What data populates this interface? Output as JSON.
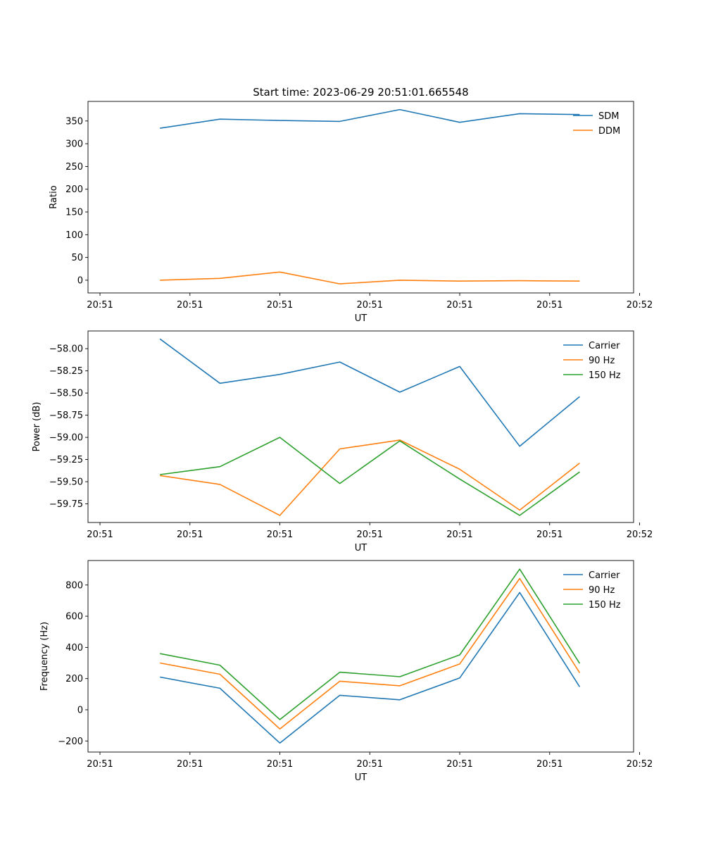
{
  "figure_title": "Start time: 2023-06-29 20:51:01.665548",
  "chart_data": [
    {
      "type": "line",
      "title": "Start time: 2023-06-29 20:51:01.665548",
      "xlabel": "UT",
      "ylabel": "Ratio",
      "x_tick_labels": [
        "20:51",
        "20:51",
        "20:51",
        "20:51",
        "20:51",
        "20:51",
        "20:52"
      ],
      "x": [
        1,
        2,
        3,
        4,
        5,
        6,
        7,
        8
      ],
      "xlim": [
        -0.2,
        8.9
      ],
      "y_ticks": [
        0,
        50,
        100,
        150,
        200,
        250,
        300,
        350
      ],
      "ylim": [
        -28,
        393
      ],
      "legend_position": "upper right",
      "series": [
        {
          "name": "SDM",
          "color": "#1f77b4",
          "values": [
            334,
            354,
            351,
            349,
            375,
            347,
            366,
            364
          ]
        },
        {
          "name": "DDM",
          "color": "#ff7f0e",
          "values": [
            0,
            4,
            18,
            -8,
            0,
            -2,
            -1,
            -2
          ]
        }
      ]
    },
    {
      "type": "line",
      "xlabel": "UT",
      "ylabel": "Power (dB)",
      "x_tick_labels": [
        "20:51",
        "20:51",
        "20:51",
        "20:51",
        "20:51",
        "20:51",
        "20:52"
      ],
      "x": [
        1,
        2,
        3,
        4,
        5,
        6,
        7,
        8
      ],
      "xlim": [
        -0.2,
        8.9
      ],
      "y_ticks": [
        -58.0,
        -58.25,
        -58.5,
        -58.75,
        -59.0,
        -59.25,
        -59.5,
        -59.75
      ],
      "y_tick_labels": [
        "−58.00",
        "−58.25",
        "−58.50",
        "−58.75",
        "−59.00",
        "−59.25",
        "−59.50",
        "−59.75"
      ],
      "ylim": [
        -59.96,
        -57.8
      ],
      "legend_position": "upper right",
      "series": [
        {
          "name": "Carrier",
          "color": "#1f77b4",
          "values": [
            -57.89,
            -58.39,
            -58.29,
            -58.15,
            -58.49,
            -58.2,
            -59.1,
            -58.54
          ]
        },
        {
          "name": "90 Hz",
          "color": "#ff7f0e",
          "values": [
            -59.43,
            -59.53,
            -59.88,
            -59.13,
            -59.03,
            -59.36,
            -59.82,
            -59.29
          ]
        },
        {
          "name": "150 Hz",
          "color": "#2ca02c",
          "values": [
            -59.42,
            -59.33,
            -59.0,
            -59.52,
            -59.04,
            -59.47,
            -59.88,
            -59.39
          ]
        }
      ]
    },
    {
      "type": "line",
      "xlabel": "UT",
      "ylabel": "Frequency (Hz)",
      "x_tick_labels": [
        "20:51",
        "20:51",
        "20:51",
        "20:51",
        "20:51",
        "20:51",
        "20:52"
      ],
      "x": [
        1,
        2,
        3,
        4,
        5,
        6,
        7,
        8
      ],
      "xlim": [
        -0.2,
        8.9
      ],
      "y_ticks": [
        -200,
        0,
        200,
        400,
        600,
        800
      ],
      "y_tick_labels": [
        "−200",
        "0",
        "200",
        "400",
        "600",
        "800"
      ],
      "ylim": [
        -271,
        957
      ],
      "legend_position": "upper right",
      "series": [
        {
          "name": "Carrier",
          "color": "#1f77b4",
          "values": [
            210,
            138,
            -213,
            93,
            64,
            204,
            752,
            147
          ]
        },
        {
          "name": "90 Hz",
          "color": "#ff7f0e",
          "values": [
            300,
            228,
            -123,
            183,
            154,
            294,
            842,
            237
          ]
        },
        {
          "name": "150 Hz",
          "color": "#2ca02c",
          "values": [
            360,
            286,
            -63,
            241,
            212,
            352,
            902,
            297
          ]
        }
      ]
    }
  ]
}
